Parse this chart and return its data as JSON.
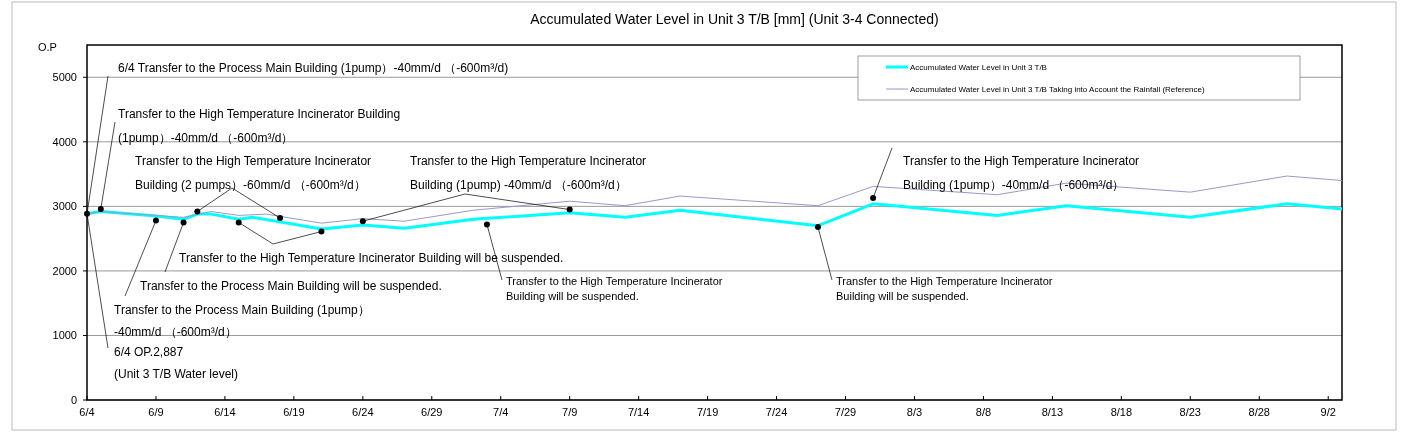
{
  "chart_data": {
    "type": "line",
    "title": "Accumulated Water Level in Unit 3 T/B [mm] (Unit 3-4 Connected)",
    "ylabel": "O.P",
    "xlim": [
      "--06-04",
      "--09-03"
    ],
    "xticks": [
      {
        "value": "--06-04",
        "label": "6/4"
      },
      {
        "value": "--06-09",
        "label": "6/9"
      },
      {
        "value": "--06-14",
        "label": "6/14"
      },
      {
        "value": "--06-19",
        "label": "6/19"
      },
      {
        "value": "--06-24",
        "label": "6/24"
      },
      {
        "value": "--06-29",
        "label": "6/29"
      },
      {
        "value": "--07-04",
        "label": "7/4"
      },
      {
        "value": "--07-09",
        "label": "7/9"
      },
      {
        "value": "--07-14",
        "label": "7/14"
      },
      {
        "value": "--07-19",
        "label": "7/19"
      },
      {
        "value": "--07-24",
        "label": "7/24"
      },
      {
        "value": "--07-29",
        "label": "7/29"
      },
      {
        "value": "--08-03",
        "label": "8/3"
      },
      {
        "value": "--08-08",
        "label": "8/8"
      },
      {
        "value": "--08-13",
        "label": "8/13"
      },
      {
        "value": "--08-18",
        "label": "8/18"
      },
      {
        "value": "--08-23",
        "label": "8/23"
      },
      {
        "value": "--08-28",
        "label": "8/28"
      },
      {
        "value": "--09-02",
        "label": "9/2"
      }
    ],
    "ylim": [
      0,
      5500
    ],
    "yticks": [
      0,
      1000,
      2000,
      3000,
      4000,
      5000
    ],
    "grid": "y",
    "legend": "top right",
    "series": [
      {
        "name": "Accumulated Water Level in Unit 3 T/B",
        "color": "#00ffff",
        "x": [
          "--06-04",
          "--06-05",
          "--06-09",
          "--06-11",
          "--06-12",
          "--06-13",
          "--06-15",
          "--06-16",
          "--06-21",
          "--06-24",
          "--06-27",
          "--07-02",
          "--07-09",
          "--07-13",
          "--07-17",
          "--07-27",
          "--07-31",
          "--08-09",
          "--08-14",
          "--08-23",
          "--08-30",
          "--09-03"
        ],
        "values": [
          2887,
          2920,
          2850,
          2800,
          2880,
          2880,
          2800,
          2830,
          2650,
          2710,
          2660,
          2800,
          2900,
          2830,
          2940,
          2700,
          3040,
          2860,
          3010,
          2830,
          3040,
          2960
        ]
      },
      {
        "name": "Accumulated Water Level in Unit 3 T/B Taking into Account the Rainfall (Reference)",
        "color": "#9999cc",
        "x": [
          "--06-04",
          "--06-05",
          "--06-11",
          "--06-13",
          "--06-15",
          "--06-17",
          "--06-21",
          "--06-24",
          "--06-27",
          "--07-02",
          "--07-09",
          "--07-13",
          "--07-17",
          "--07-27",
          "--07-31",
          "--08-09",
          "--08-14",
          "--08-23",
          "--08-30",
          "--09-03"
        ],
        "values": [
          2887,
          2920,
          2830,
          2920,
          2860,
          2880,
          2740,
          2810,
          2770,
          2940,
          3080,
          3010,
          3160,
          3010,
          3310,
          3180,
          3360,
          3220,
          3470,
          3400
        ]
      },
      {
        "type": "scatter",
        "color": "#000000",
        "marker": "circle",
        "x": [
          "--06-04",
          "--06-05",
          "--06-09",
          "--06-11",
          "--06-12",
          "--06-15",
          "--06-18",
          "--06-21",
          "--06-24",
          "--07-03",
          "--07-09",
          "--07-27",
          "--07-31"
        ],
        "values": [
          2887,
          2960,
          2780,
          2750,
          2920,
          2750,
          2820,
          2610,
          2770,
          2720,
          2950,
          2680,
          3130
        ]
      }
    ],
    "annotations": [
      {
        "text": "6/4  Transfer to the Process Main Building (1pump）-40mm/d （-600m³/d)",
        "x": "--06-04",
        "y": 2887
      },
      {
        "text": "Transfer to the High Temperature Incinerator Building\n(1pump）-40mm/d （-600m³/d）",
        "x": "--06-05",
        "y": 2960
      },
      {
        "text": "Transfer to the High Temperature Incinerator\nBuilding (2 pumps）-60mm/d （-600m³/d）",
        "x": "--06-12",
        "y": 2920
      },
      {
        "text": "Transfer to the High Temperature Incinerator\nBuilding (1pump) -40mm/d （-600m³/d）",
        "x": "--06-24",
        "y": 2770
      },
      {
        "text": "Transfer to the High Temperature Incinerator Building will be suspended.",
        "x": "--06-15",
        "y": 2750
      },
      {
        "text": "Transfer to the Process Main Building will be suspended.",
        "x": "--06-11",
        "y": 2750
      },
      {
        "text": "Transfer to the Process Main Building (1pump）\n-40mm/d （-600m³/d）",
        "x": "--06-09",
        "y": 2780
      },
      {
        "text": "6/4  OP.2,887\n(Unit 3 T/B Water level)",
        "x": "--06-04",
        "y": 2887
      },
      {
        "text": "Transfer to the High Temperature Incinerator\nBuilding will be suspended.",
        "x": "--07-03",
        "y": 2720
      },
      {
        "text": "Transfer to the High Temperature Incinerator\nBuilding will be suspended.",
        "x": "--07-27",
        "y": 2680
      },
      {
        "text": "Transfer to the High Temperature Incinerator\nBuilding (1pump）-40mm/d （-600m³/d）",
        "x": "--07-31",
        "y": 3130
      }
    ]
  }
}
